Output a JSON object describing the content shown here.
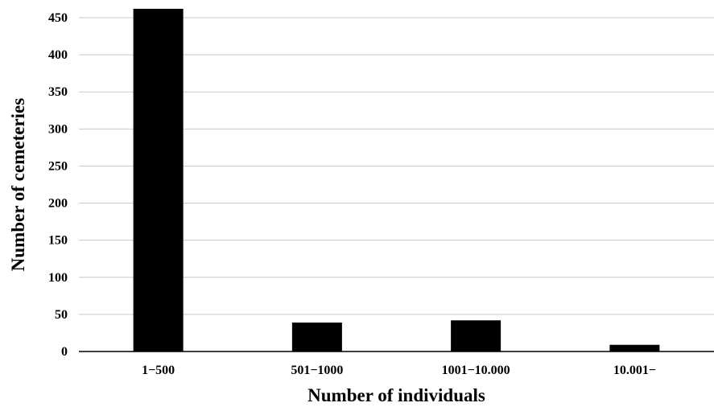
{
  "chart_data": {
    "type": "bar",
    "title": "",
    "xlabel": "Number of individuals",
    "ylabel": "Number of cemeteries",
    "categories": [
      "1−500",
      "501−1000",
      "1001−10.000",
      "10.001−"
    ],
    "values": [
      462,
      39,
      42,
      9
    ],
    "ylim": [
      0,
      450
    ],
    "yticks": [
      0,
      50,
      100,
      150,
      200,
      250,
      300,
      350,
      400,
      450
    ],
    "grid": true,
    "legend": "none",
    "colors": {
      "bar": "#000000",
      "grid": "#c8c8c8"
    }
  }
}
